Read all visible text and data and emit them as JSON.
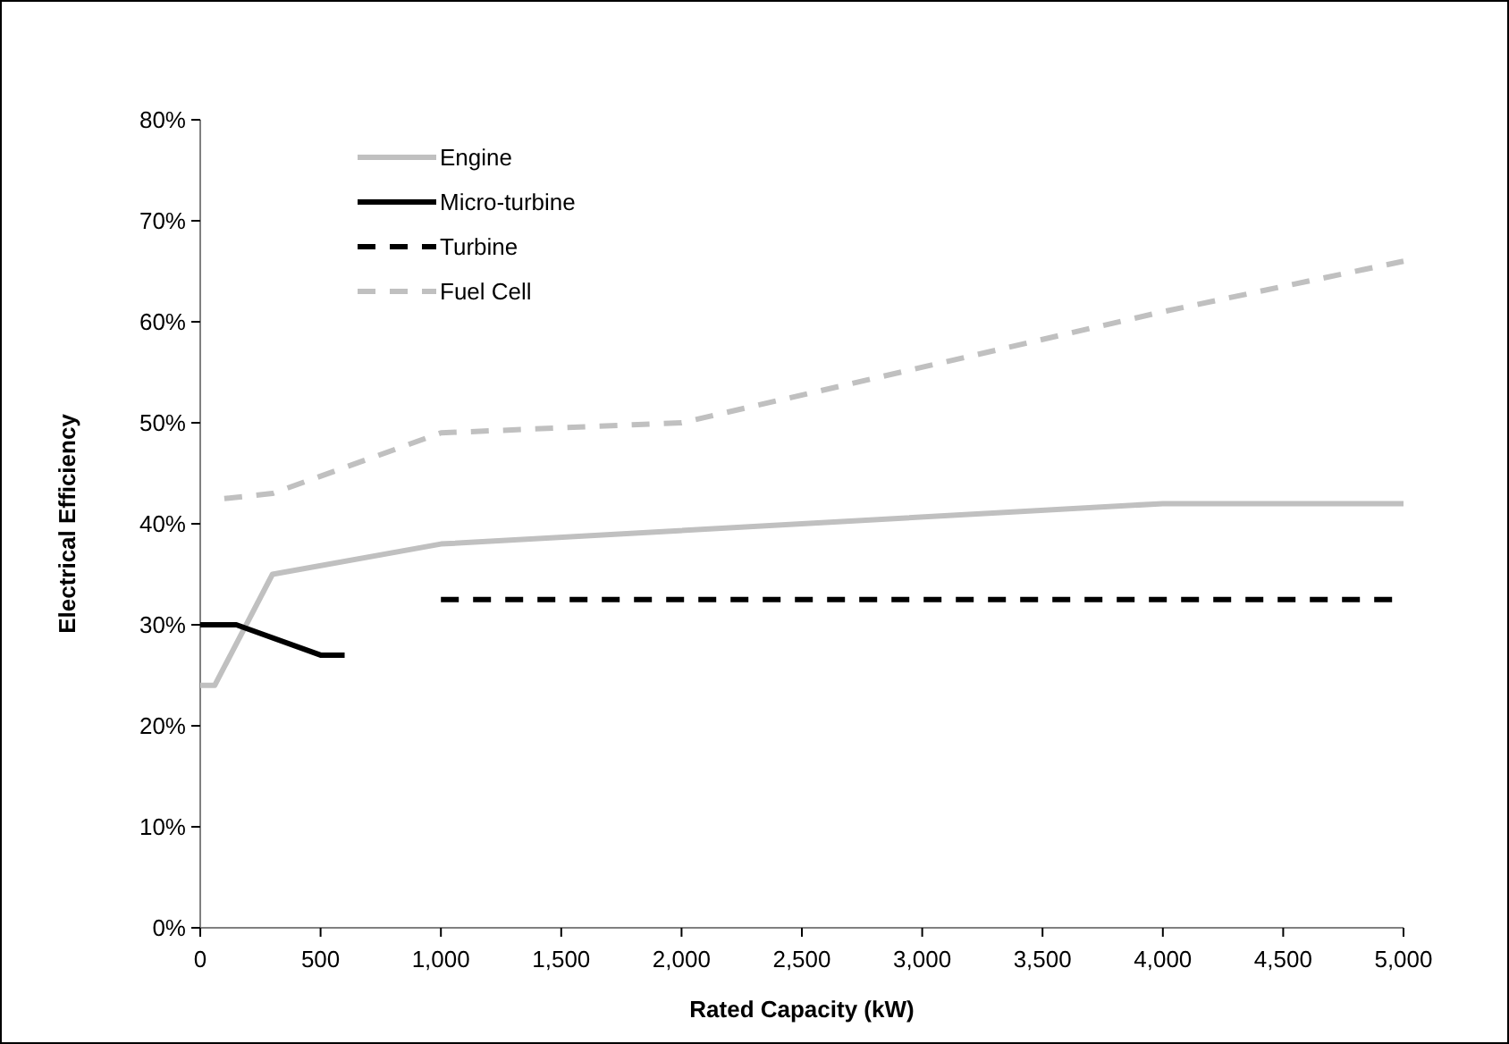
{
  "chart_data": {
    "type": "line",
    "xlabel": "Rated Capacity (kW)",
    "ylabel": "Electrical Efficiency",
    "xlim": [
      0,
      5000
    ],
    "ylim": [
      0,
      80
    ],
    "xticks": [
      0,
      500,
      {
        "value": 1000,
        "label": "1,000"
      },
      {
        "value": 1500,
        "label": "1,500"
      },
      {
        "value": 2000,
        "label": "2,000"
      },
      {
        "value": 2500,
        "label": "2,500"
      },
      {
        "value": 3000,
        "label": "3,000"
      },
      {
        "value": 3500,
        "label": "3,500"
      },
      {
        "value": 4000,
        "label": "4,000"
      },
      {
        "value": 4500,
        "label": "4,500"
      },
      {
        "value": 5000,
        "label": "5,000"
      }
    ],
    "yticks": [
      {
        "value": 0,
        "label": "0%"
      },
      {
        "value": 10,
        "label": "10%"
      },
      {
        "value": 20,
        "label": "20%"
      },
      {
        "value": 30,
        "label": "30%"
      },
      {
        "value": 40,
        "label": "40%"
      },
      {
        "value": 50,
        "label": "50%"
      },
      {
        "value": 60,
        "label": "60%"
      },
      {
        "value": 70,
        "label": "70%"
      },
      {
        "value": 80,
        "label": "80%"
      }
    ],
    "legend": "top left",
    "grid": false,
    "series": [
      {
        "name": "Engine",
        "color": "#c0c0c0",
        "line_style": "solid",
        "x": [
          0,
          60,
          300,
          1000,
          4000,
          5000
        ],
        "values": [
          24,
          24,
          35,
          38,
          42,
          42
        ]
      },
      {
        "name": "Micro-turbine",
        "color": "#000000",
        "line_style": "solid",
        "x": [
          0,
          150,
          500,
          600
        ],
        "values": [
          30,
          30,
          27,
          27
        ]
      },
      {
        "name": "Turbine",
        "color": "#000000",
        "line_style": "dashed",
        "x": [
          1000,
          5000
        ],
        "values": [
          32.5,
          32.5
        ]
      },
      {
        "name": "Fuel Cell",
        "color": "#c0c0c0",
        "line_style": "dashed",
        "x": [
          100,
          300,
          1000,
          2000,
          4000,
          5000
        ],
        "values": [
          42.5,
          43,
          49,
          50,
          61,
          66
        ]
      }
    ]
  }
}
